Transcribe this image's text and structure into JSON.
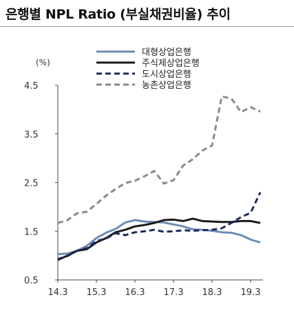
{
  "title": "은행별 NPL Ratio (부실채권비율) 추이",
  "chart_data": {
    "type": "line",
    "title": "은행별 NPL Ratio (부실채권비율) 추이",
    "unit_label": "(%)",
    "xlabel": "",
    "ylabel": "",
    "ylim": [
      0.5,
      4.5
    ],
    "y_ticks": [
      "4.5",
      "3.5",
      "2.5",
      "1.5",
      "0.5"
    ],
    "x_ticks": [
      "14.3",
      "15.3",
      "16.3",
      "17.3",
      "18.3",
      "19.3"
    ],
    "x": [
      "14.3",
      "14.6",
      "14.9",
      "14.12",
      "15.3",
      "15.6",
      "15.9",
      "15.12",
      "16.3",
      "16.6",
      "16.9",
      "16.12",
      "17.3",
      "17.6",
      "17.9",
      "17.12",
      "18.3",
      "18.6",
      "18.9",
      "18.12",
      "19.3",
      "19.6"
    ],
    "grid": false,
    "legend_position": "top-right",
    "series": [
      {
        "name": "대형상업은행",
        "color": "#6d8bb5",
        "dash": "solid",
        "width": 3,
        "values": [
          1.03,
          1.04,
          1.1,
          1.2,
          1.36,
          1.47,
          1.55,
          1.68,
          1.73,
          1.7,
          1.69,
          1.68,
          1.64,
          1.6,
          1.54,
          1.53,
          1.51,
          1.48,
          1.47,
          1.42,
          1.33,
          1.27
        ]
      },
      {
        "name": "주식제상업은행",
        "color": "#1a1a1a",
        "dash": "solid",
        "width": 3,
        "values": [
          0.91,
          1.0,
          1.1,
          1.13,
          1.27,
          1.36,
          1.48,
          1.53,
          1.6,
          1.63,
          1.67,
          1.73,
          1.74,
          1.71,
          1.76,
          1.71,
          1.7,
          1.69,
          1.69,
          1.71,
          1.71,
          1.67
        ]
      },
      {
        "name": "도시상업은행",
        "color": "#1d2a5a",
        "dash": "dash",
        "width": 3,
        "values": [
          0.93,
          0.99,
          1.1,
          1.15,
          1.3,
          1.35,
          1.46,
          1.42,
          1.48,
          1.5,
          1.53,
          1.49,
          1.5,
          1.52,
          1.51,
          1.52,
          1.53,
          1.56,
          1.67,
          1.79,
          1.88,
          2.3
        ]
      },
      {
        "name": "농촌상업은행",
        "color": "#8a8a8a",
        "dash": "dash",
        "width": 3,
        "values": [
          1.67,
          1.73,
          1.87,
          1.9,
          2.06,
          2.23,
          2.37,
          2.49,
          2.54,
          2.63,
          2.74,
          2.48,
          2.55,
          2.85,
          2.98,
          3.16,
          3.26,
          4.27,
          4.23,
          3.95,
          4.05,
          3.96
        ]
      }
    ]
  }
}
